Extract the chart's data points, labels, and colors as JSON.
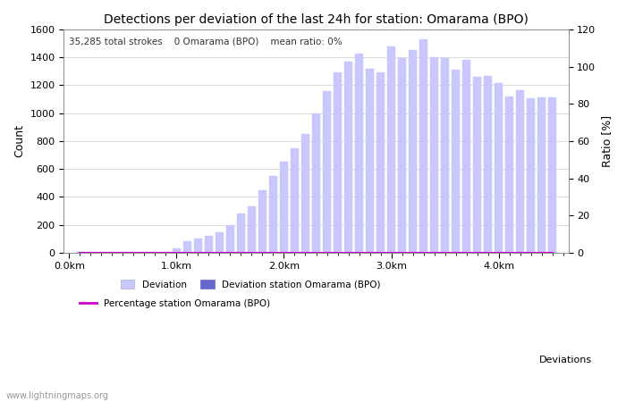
{
  "title": "Detections per deviation of the last 24h for station: Omarama (BPO)",
  "subtitle": "35,285 total strokes    0 Omarama (BPO)    mean ratio: 0%",
  "xlabel_right": "Deviations",
  "ylabel_left": "Count",
  "ylabel_right": "Ratio [%]",
  "watermark": "www.lightningmaps.org",
  "bar_color_light": "#c8c8ff",
  "bar_color_dark": "#6666cc",
  "line_color": "#cc00cc",
  "bar_width": 0.075,
  "x_tick_labels": [
    "0.0km",
    "1.0km",
    "2.0km",
    "3.0km",
    "4.0km"
  ],
  "x_tick_positions": [
    0.0,
    1.0,
    2.0,
    3.0,
    4.0
  ],
  "ylim_left": [
    0,
    1600
  ],
  "ylim_right": [
    0,
    120
  ],
  "y_ticks_left": [
    0,
    200,
    400,
    600,
    800,
    1000,
    1200,
    1400,
    1600
  ],
  "y_ticks_right": [
    0,
    20,
    40,
    60,
    80,
    100,
    120
  ],
  "bar_positions": [
    0.1,
    0.2,
    0.3,
    0.4,
    0.5,
    0.6,
    0.7,
    0.8,
    0.9,
    1.0,
    1.1,
    1.2,
    1.3,
    1.4,
    1.5,
    1.6,
    1.7,
    1.8,
    1.9,
    2.0,
    2.1,
    2.2,
    2.3,
    2.4,
    2.5,
    2.6,
    2.7,
    2.8,
    2.9,
    3.0,
    3.1,
    3.2,
    3.3,
    3.4,
    3.5,
    3.6,
    3.7,
    3.8,
    3.9,
    4.0,
    4.1,
    4.2,
    4.3,
    4.4,
    4.5
  ],
  "bar_heights": [
    5,
    5,
    5,
    5,
    5,
    5,
    5,
    5,
    5,
    30,
    80,
    100,
    120,
    150,
    200,
    280,
    330,
    450,
    550,
    650,
    750,
    850,
    1000,
    1155,
    1295,
    1370,
    1430,
    1320,
    1295,
    1475,
    1395,
    1450,
    1530,
    1400,
    1395,
    1310,
    1385,
    1260,
    1270,
    1215,
    1120,
    1165,
    1110,
    1115,
    1115
  ],
  "station_bar_heights": [
    0,
    0,
    0,
    0,
    0,
    0,
    0,
    0,
    0,
    0,
    0,
    0,
    0,
    0,
    0,
    0,
    0,
    0,
    0,
    0,
    0,
    0,
    0,
    0,
    0,
    0,
    0,
    0,
    0,
    0,
    0,
    0,
    0,
    0,
    0,
    0,
    0,
    0,
    0,
    0,
    0,
    0,
    0,
    0,
    0
  ],
  "legend_labels": [
    "Deviation",
    "Deviation station Omarama (BPO)",
    "Percentage station Omarama (BPO)"
  ]
}
